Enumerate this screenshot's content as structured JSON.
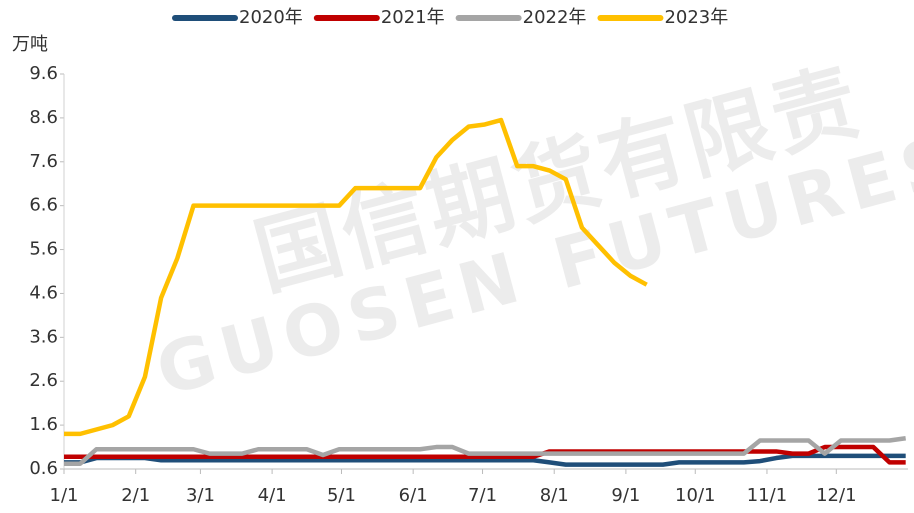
{
  "chart_data": {
    "type": "line",
    "unit_label": "万吨",
    "watermark": [
      "国信期货有限责",
      "GUOSEN FUTURES"
    ],
    "legend": "top",
    "x": [
      1,
      8,
      15,
      22,
      29,
      36,
      43,
      50,
      57,
      64,
      71,
      78,
      85,
      92,
      99,
      106,
      113,
      120,
      127,
      134,
      141,
      148,
      155,
      162,
      169,
      176,
      183,
      190,
      197,
      204,
      211,
      218,
      225,
      232,
      239,
      246,
      253,
      260,
      267,
      274,
      281,
      288,
      295,
      302,
      309,
      316,
      323,
      330,
      337,
      344,
      351,
      358,
      365
    ],
    "xlim": [
      1,
      366
    ],
    "xticks": [
      {
        "value": 1,
        "label": "1/1"
      },
      {
        "value": 32,
        "label": "2/1"
      },
      {
        "value": 60,
        "label": "3/1"
      },
      {
        "value": 91,
        "label": "4/1"
      },
      {
        "value": 121,
        "label": "5/1"
      },
      {
        "value": 152,
        "label": "6/1"
      },
      {
        "value": 182,
        "label": "7/1"
      },
      {
        "value": 213,
        "label": "8/1"
      },
      {
        "value": 244,
        "label": "9/1"
      },
      {
        "value": 274,
        "label": "10/1"
      },
      {
        "value": 305,
        "label": "11/1"
      },
      {
        "value": 335,
        "label": "12/1"
      }
    ],
    "ylim": [
      0.6,
      9.6
    ],
    "yticks": [
      0.6,
      1.6,
      2.6,
      3.6,
      4.6,
      5.6,
      6.6,
      7.6,
      8.6,
      9.6
    ],
    "series": [
      {
        "name": "2020年",
        "color": "#1f4e79",
        "values": [
          0.75,
          0.75,
          0.85,
          0.85,
          0.85,
          0.85,
          0.8,
          0.8,
          0.8,
          0.8,
          0.8,
          0.8,
          0.8,
          0.8,
          0.8,
          0.8,
          0.8,
          0.8,
          0.8,
          0.8,
          0.8,
          0.8,
          0.8,
          0.8,
          0.8,
          0.8,
          0.8,
          0.8,
          0.8,
          0.8,
          0.75,
          0.7,
          0.7,
          0.7,
          0.7,
          0.7,
          0.7,
          0.7,
          0.75,
          0.75,
          0.75,
          0.75,
          0.75,
          0.78,
          0.85,
          0.9,
          0.9,
          0.9,
          0.9,
          0.9,
          0.9,
          0.9,
          0.9
        ]
      },
      {
        "name": "2021年",
        "color": "#c00000",
        "values": [
          0.88,
          0.88,
          0.88,
          0.88,
          0.88,
          0.88,
          0.88,
          0.88,
          0.88,
          0.88,
          0.88,
          0.88,
          0.88,
          0.88,
          0.88,
          0.88,
          0.88,
          0.88,
          0.88,
          0.88,
          0.88,
          0.88,
          0.88,
          0.88,
          0.88,
          0.88,
          0.88,
          0.88,
          0.88,
          0.88,
          1.0,
          1.0,
          1.0,
          1.0,
          1.0,
          1.0,
          1.0,
          1.0,
          1.0,
          1.0,
          1.0,
          1.0,
          1.0,
          1.0,
          1.0,
          0.95,
          0.95,
          1.1,
          1.1,
          1.1,
          1.1,
          0.75,
          0.75
        ]
      },
      {
        "name": "2022年",
        "color": "#a5a5a5",
        "values": [
          0.72,
          0.72,
          1.05,
          1.05,
          1.05,
          1.05,
          1.05,
          1.05,
          1.05,
          0.95,
          0.95,
          0.95,
          1.05,
          1.05,
          1.05,
          1.05,
          0.92,
          1.05,
          1.05,
          1.05,
          1.05,
          1.05,
          1.05,
          1.1,
          1.1,
          0.95,
          0.95,
          0.95,
          0.95,
          0.95,
          0.95,
          0.95,
          0.95,
          0.95,
          0.95,
          0.95,
          0.95,
          0.95,
          0.95,
          0.95,
          0.95,
          0.95,
          0.95,
          1.25,
          1.25,
          1.25,
          1.25,
          0.95,
          1.25,
          1.25,
          1.25,
          1.25,
          1.3
        ]
      },
      {
        "name": "2023年",
        "color": "#ffc000",
        "values": [
          1.4,
          1.4,
          1.5,
          1.6,
          1.8,
          2.7,
          4.5,
          5.4,
          6.6,
          6.6,
          6.6,
          6.6,
          6.6,
          6.6,
          6.6,
          6.6,
          6.6,
          6.6,
          7.0,
          7.0,
          7.0,
          7.0,
          7.0,
          7.7,
          8.1,
          8.4,
          8.45,
          8.55,
          7.5,
          7.5,
          7.4,
          7.2,
          6.1,
          5.7,
          5.3,
          5.0,
          4.8,
          null,
          null,
          null,
          null,
          null,
          null,
          null,
          null,
          null,
          null,
          null,
          null,
          null,
          null,
          null,
          null
        ]
      }
    ]
  }
}
